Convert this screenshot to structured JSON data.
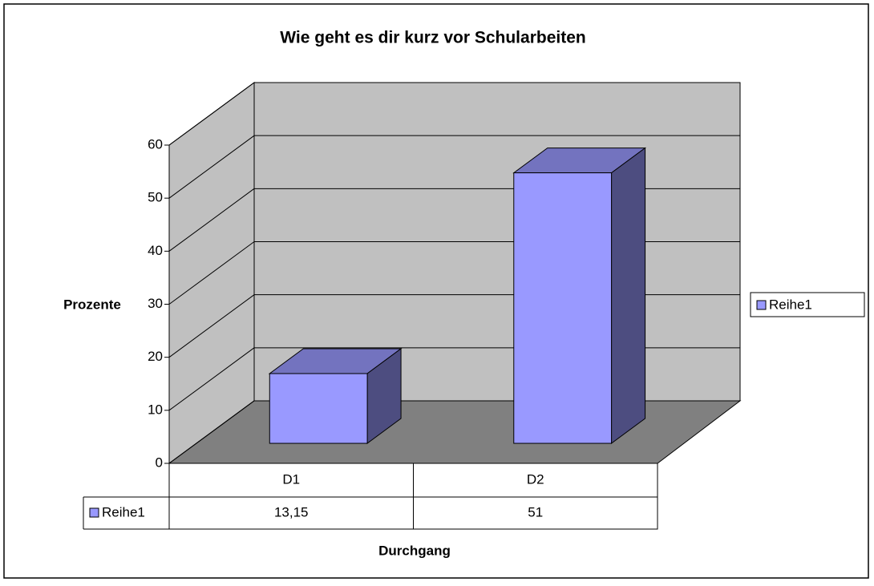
{
  "chart_data": {
    "type": "bar3d",
    "title": "Wie geht es dir kurz vor Schularbeiten",
    "xlabel": "Durchgang",
    "ylabel": "Prozente",
    "categories": [
      "D1",
      "D2"
    ],
    "series": [
      {
        "name": "Reihe1",
        "color": "#9999ff",
        "values": [
          13.15,
          51
        ],
        "value_labels": [
          "13,15",
          "51"
        ]
      }
    ],
    "ylim": [
      0,
      60
    ],
    "yticks": [
      0,
      10,
      20,
      30,
      40,
      50,
      60
    ],
    "grid": true,
    "legend": "right",
    "data_table": true
  }
}
